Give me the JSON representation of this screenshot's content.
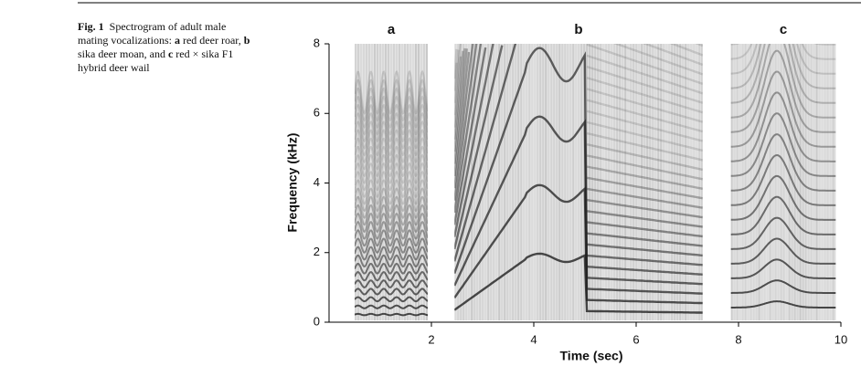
{
  "caption": {
    "label": "Fig. 1",
    "lead": "Spectrogram of adult male mating vocalizations:",
    "items": [
      {
        "letter": "a",
        "text": "red deer roar,"
      },
      {
        "letter": "b",
        "text": "sika deer moan, and"
      },
      {
        "letter": "c",
        "text": "red × sika F1 hybrid deer wail"
      }
    ]
  },
  "chart_data": {
    "type": "spectrogram",
    "xlabel": "Time (sec)",
    "ylabel": "Frequency (kHz)",
    "xlim": [
      0,
      10
    ],
    "xticks": [
      2,
      4,
      6,
      8,
      10
    ],
    "ylim": [
      0,
      8
    ],
    "yticks": [
      0,
      2,
      4,
      6,
      8
    ],
    "panels": [
      {
        "label": "a",
        "x": [
          0.5,
          1.93
        ]
      },
      {
        "label": "b",
        "x": [
          2.45,
          7.3
        ]
      },
      {
        "label": "c",
        "x": [
          7.85,
          9.9
        ]
      }
    ]
  }
}
